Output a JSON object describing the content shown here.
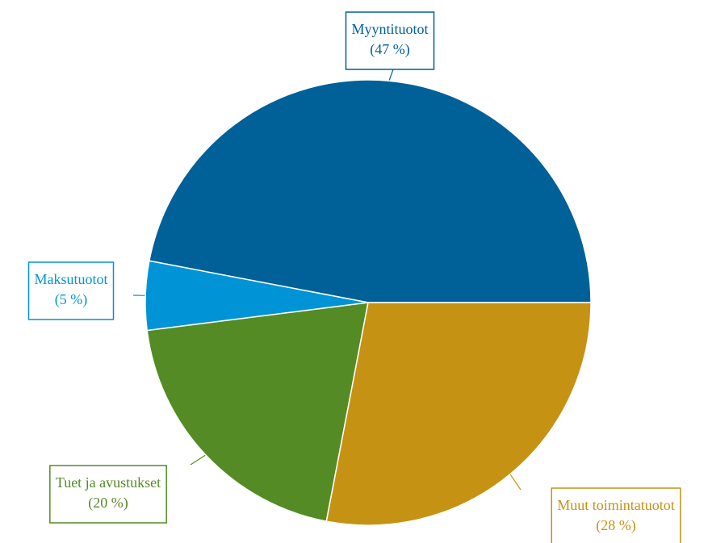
{
  "chart_data": {
    "type": "pie",
    "categories": [
      "Myyntituotot",
      "Maksutuotot",
      "Tuet ja avustukset",
      "Muut toimintatuotot"
    ],
    "values": [
      47,
      5,
      20,
      28
    ],
    "value_labels": [
      "(47 %)",
      "(5 %)",
      "(20 %)",
      "(28 %)"
    ],
    "colors": [
      "#006098",
      "#0094d6",
      "#548b24",
      "#c69214"
    ]
  }
}
